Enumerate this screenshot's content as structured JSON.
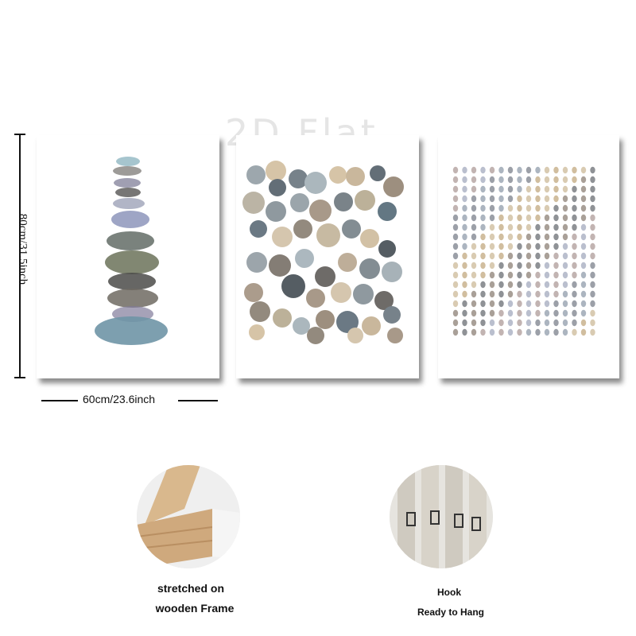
{
  "watermark": "2D Flat",
  "dimensions": {
    "height_label": "80cm/31.5inch",
    "width_label": "60cm/23.6inch"
  },
  "panels": [
    {
      "subject": "stacked watercolor stones"
    },
    {
      "subject": "overlapping watercolor circles"
    },
    {
      "subject": "grid of watercolor dots"
    }
  ],
  "features": {
    "frame": {
      "line1": "stretched on",
      "line2": "wooden Frame"
    },
    "hook": {
      "line1": "Hook",
      "line2": "Ready to Hang"
    }
  },
  "colors": {
    "stone_blue": "#6f95a6",
    "stone_olive": "#737a63",
    "stone_dark": "#4b4b49",
    "wood": "#d9b88d"
  }
}
